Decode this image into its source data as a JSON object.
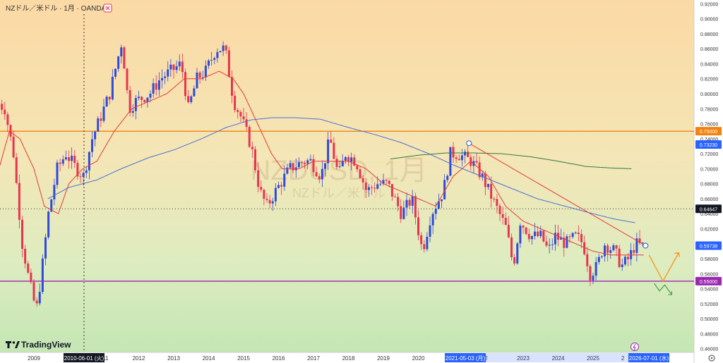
{
  "header": {
    "symbol_title": "NZドル／米ドル · 1月 · OANDA",
    "close_icon": "close-icon"
  },
  "watermark": {
    "symbol": "NZDUSD, 1月",
    "name": "NZドル／米ドル"
  },
  "branding": {
    "logo_text": "TradingView"
  },
  "crosshair": {
    "x_label": "2010-06-01 (火)"
  },
  "highlights": {
    "x_labels": [
      "2021-05-03 (月)",
      "2026-07-01 (水)"
    ]
  },
  "colors": {
    "up_candle": "#2f4ad9",
    "down_candle": "#e8344e",
    "ma_fast": "#e83a3a",
    "ma_slow": "#4a6fd6",
    "ma_long": "#2f7a45",
    "hline_orange": "#f0820f",
    "hline_purple": "#9b27b0",
    "price_badge_blue": "#2962ff",
    "highlight_bg": "#2962ff",
    "arrow_orange": "#f59a23",
    "arrow_green": "#43a047"
  },
  "chart_data": {
    "type": "candlestick",
    "symbol": "NZDUSD",
    "interval": "1月",
    "source": "OANDA",
    "ylim": [
      0.455,
      0.925
    ],
    "x_tick_labels": [
      "2009",
      "11",
      "2012",
      "2013",
      "2014",
      "2015",
      "2016",
      "2017",
      "2018",
      "2019",
      "2020",
      "022",
      "2023",
      "2024",
      "2025",
      "2",
      "7"
    ],
    "y_tick_labels": [
      "0.92000",
      "0.90000",
      "0.88000",
      "0.86000",
      "0.84000",
      "0.82000",
      "0.80000",
      "0.78000",
      "0.76000",
      "0.74000",
      "0.72000",
      "0.70000",
      "0.68000",
      "0.66000",
      "0.64000",
      "0.62000",
      "0.60000",
      "0.58000",
      "0.56000",
      "0.54000",
      "0.52000",
      "0.50000",
      "0.48000",
      "0.46000"
    ],
    "price_labels": [
      {
        "value": 0.75,
        "text": "0.75000",
        "style": "orange"
      },
      {
        "value": 0.7323,
        "text": "0.73230",
        "style": "blue"
      },
      {
        "value": 0.64647,
        "text": "0.64647",
        "style": "dark"
      },
      {
        "value": 0.59738,
        "text": "0.59738",
        "style": "blue"
      },
      {
        "value": 0.55,
        "text": "0.55000",
        "style": "purple"
      }
    ],
    "horizontal_lines": [
      {
        "value": 0.75,
        "color": "orange"
      },
      {
        "value": 0.55,
        "color": "purple"
      }
    ],
    "dotted_levels": [
      0.64647
    ],
    "trendline": {
      "from": {
        "year": 2021.45,
        "value": 0.734
      },
      "to": {
        "year": 2026.5,
        "value": 0.5974
      }
    },
    "ohlc_anchors": [
      {
        "year": 2008.0,
        "price": 0.79
      },
      {
        "year": 2008.25,
        "price": 0.78
      },
      {
        "year": 2008.5,
        "price": 0.72
      },
      {
        "year": 2008.75,
        "price": 0.6
      },
      {
        "year": 2008.95,
        "price": 0.55
      },
      {
        "year": 2009.15,
        "price": 0.51
      },
      {
        "year": 2009.3,
        "price": 0.56
      },
      {
        "year": 2009.5,
        "price": 0.64
      },
      {
        "year": 2009.75,
        "price": 0.7
      },
      {
        "year": 2010.0,
        "price": 0.72
      },
      {
        "year": 2010.3,
        "price": 0.7
      },
      {
        "year": 2010.5,
        "price": 0.69
      },
      {
        "year": 2010.75,
        "price": 0.74
      },
      {
        "year": 2011.0,
        "price": 0.77
      },
      {
        "year": 2011.25,
        "price": 0.8
      },
      {
        "year": 2011.6,
        "price": 0.87
      },
      {
        "year": 2011.8,
        "price": 0.78
      },
      {
        "year": 2012.0,
        "price": 0.79
      },
      {
        "year": 2012.4,
        "price": 0.8
      },
      {
        "year": 2012.7,
        "price": 0.82
      },
      {
        "year": 2013.0,
        "price": 0.83
      },
      {
        "year": 2013.3,
        "price": 0.84
      },
      {
        "year": 2013.5,
        "price": 0.78
      },
      {
        "year": 2013.75,
        "price": 0.82
      },
      {
        "year": 2014.0,
        "price": 0.83
      },
      {
        "year": 2014.3,
        "price": 0.86
      },
      {
        "year": 2014.55,
        "price": 0.86
      },
      {
        "year": 2014.8,
        "price": 0.79
      },
      {
        "year": 2015.0,
        "price": 0.77
      },
      {
        "year": 2015.3,
        "price": 0.73
      },
      {
        "year": 2015.55,
        "price": 0.67
      },
      {
        "year": 2015.75,
        "price": 0.65
      },
      {
        "year": 2016.0,
        "price": 0.67
      },
      {
        "year": 2016.4,
        "price": 0.7
      },
      {
        "year": 2016.8,
        "price": 0.71
      },
      {
        "year": 2017.0,
        "price": 0.71
      },
      {
        "year": 2017.3,
        "price": 0.69
      },
      {
        "year": 2017.55,
        "price": 0.74
      },
      {
        "year": 2017.8,
        "price": 0.69
      },
      {
        "year": 2018.0,
        "price": 0.72
      },
      {
        "year": 2018.3,
        "price": 0.71
      },
      {
        "year": 2018.6,
        "price": 0.67
      },
      {
        "year": 2018.9,
        "price": 0.68
      },
      {
        "year": 2019.2,
        "price": 0.68
      },
      {
        "year": 2019.6,
        "price": 0.64
      },
      {
        "year": 2019.9,
        "price": 0.66
      },
      {
        "year": 2020.2,
        "price": 0.59
      },
      {
        "year": 2020.45,
        "price": 0.64
      },
      {
        "year": 2020.8,
        "price": 0.67
      },
      {
        "year": 2021.0,
        "price": 0.72
      },
      {
        "year": 2021.2,
        "price": 0.72
      },
      {
        "year": 2021.6,
        "price": 0.71
      },
      {
        "year": 2021.9,
        "price": 0.69
      },
      {
        "year": 2022.0,
        "price": 0.68
      },
      {
        "year": 2022.3,
        "price": 0.65
      },
      {
        "year": 2022.6,
        "price": 0.62
      },
      {
        "year": 2022.8,
        "price": 0.57
      },
      {
        "year": 2023.0,
        "price": 0.63
      },
      {
        "year": 2023.3,
        "price": 0.61
      },
      {
        "year": 2023.6,
        "price": 0.61
      },
      {
        "year": 2023.8,
        "price": 0.59
      },
      {
        "year": 2024.0,
        "price": 0.61
      },
      {
        "year": 2024.3,
        "price": 0.6
      },
      {
        "year": 2024.6,
        "price": 0.61
      },
      {
        "year": 2024.8,
        "price": 0.6
      },
      {
        "year": 2025.0,
        "price": 0.56
      },
      {
        "year": 2025.2,
        "price": 0.57
      },
      {
        "year": 2025.4,
        "price": 0.6
      },
      {
        "year": 2025.7,
        "price": 0.59
      },
      {
        "year": 2025.9,
        "price": 0.57
      },
      {
        "year": 2026.1,
        "price": 0.58
      },
      {
        "year": 2026.3,
        "price": 0.6
      },
      {
        "year": 2026.45,
        "price": 0.597
      }
    ],
    "ma_fast_anchors": [
      {
        "year": 2008.0,
        "price": 0.7
      },
      {
        "year": 2008.3,
        "price": 0.75
      },
      {
        "year": 2008.6,
        "price": 0.74
      },
      {
        "year": 2009.0,
        "price": 0.7
      },
      {
        "year": 2009.3,
        "price": 0.65
      },
      {
        "year": 2009.7,
        "price": 0.64
      },
      {
        "year": 2010.0,
        "price": 0.68
      },
      {
        "year": 2010.4,
        "price": 0.7
      },
      {
        "year": 2010.8,
        "price": 0.71
      },
      {
        "year": 2011.3,
        "price": 0.75
      },
      {
        "year": 2011.8,
        "price": 0.78
      },
      {
        "year": 2012.3,
        "price": 0.79
      },
      {
        "year": 2012.8,
        "price": 0.8
      },
      {
        "year": 2013.3,
        "price": 0.82
      },
      {
        "year": 2013.8,
        "price": 0.82
      },
      {
        "year": 2014.3,
        "price": 0.83
      },
      {
        "year": 2014.7,
        "price": 0.82
      },
      {
        "year": 2015.0,
        "price": 0.8
      },
      {
        "year": 2015.4,
        "price": 0.76
      },
      {
        "year": 2015.8,
        "price": 0.72
      },
      {
        "year": 2016.1,
        "price": 0.7
      },
      {
        "year": 2016.6,
        "price": 0.7
      },
      {
        "year": 2017.0,
        "price": 0.71
      },
      {
        "year": 2017.5,
        "price": 0.71
      },
      {
        "year": 2018.0,
        "price": 0.71
      },
      {
        "year": 2018.5,
        "price": 0.7
      },
      {
        "year": 2019.0,
        "price": 0.68
      },
      {
        "year": 2019.5,
        "price": 0.67
      },
      {
        "year": 2020.0,
        "price": 0.66
      },
      {
        "year": 2020.5,
        "price": 0.65
      },
      {
        "year": 2021.0,
        "price": 0.69
      },
      {
        "year": 2021.5,
        "price": 0.71
      },
      {
        "year": 2022.0,
        "price": 0.69
      },
      {
        "year": 2022.5,
        "price": 0.65
      },
      {
        "year": 2023.0,
        "price": 0.63
      },
      {
        "year": 2023.5,
        "price": 0.62
      },
      {
        "year": 2024.0,
        "price": 0.61
      },
      {
        "year": 2024.5,
        "price": 0.6
      },
      {
        "year": 2025.0,
        "price": 0.59
      },
      {
        "year": 2025.5,
        "price": 0.585
      },
      {
        "year": 2026.45,
        "price": 0.585
      }
    ],
    "ma_slow_anchors": [
      {
        "year": 2009.4,
        "price": 0.66
      },
      {
        "year": 2010.0,
        "price": 0.675
      },
      {
        "year": 2010.8,
        "price": 0.685
      },
      {
        "year": 2011.5,
        "price": 0.7
      },
      {
        "year": 2012.3,
        "price": 0.715
      },
      {
        "year": 2013.0,
        "price": 0.725
      },
      {
        "year": 2013.8,
        "price": 0.74
      },
      {
        "year": 2014.5,
        "price": 0.755
      },
      {
        "year": 2015.2,
        "price": 0.765
      },
      {
        "year": 2015.8,
        "price": 0.768
      },
      {
        "year": 2016.5,
        "price": 0.768
      },
      {
        "year": 2017.2,
        "price": 0.766
      },
      {
        "year": 2018.0,
        "price": 0.755
      },
      {
        "year": 2018.8,
        "price": 0.745
      },
      {
        "year": 2019.5,
        "price": 0.735
      },
      {
        "year": 2020.3,
        "price": 0.72
      },
      {
        "year": 2021.0,
        "price": 0.705
      },
      {
        "year": 2021.8,
        "price": 0.69
      },
      {
        "year": 2022.6,
        "price": 0.675
      },
      {
        "year": 2023.4,
        "price": 0.66
      },
      {
        "year": 2024.2,
        "price": 0.65
      },
      {
        "year": 2025.0,
        "price": 0.64
      },
      {
        "year": 2025.6,
        "price": 0.633
      },
      {
        "year": 2026.2,
        "price": 0.628
      }
    ],
    "ma_long_anchors": [
      {
        "year": 2019.2,
        "price": 0.713
      },
      {
        "year": 2020.0,
        "price": 0.718
      },
      {
        "year": 2020.8,
        "price": 0.721
      },
      {
        "year": 2021.6,
        "price": 0.721
      },
      {
        "year": 2022.4,
        "price": 0.72
      },
      {
        "year": 2023.2,
        "price": 0.716
      },
      {
        "year": 2024.0,
        "price": 0.71
      },
      {
        "year": 2024.8,
        "price": 0.703
      },
      {
        "year": 2025.5,
        "price": 0.701
      },
      {
        "year": 2026.1,
        "price": 0.7
      }
    ]
  }
}
